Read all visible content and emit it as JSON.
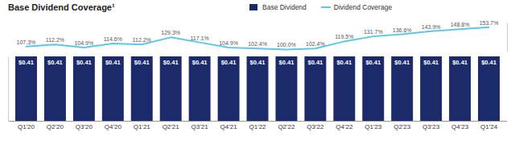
{
  "chart_data": {
    "type": "bar",
    "title": "Base Dividend Coverage¹",
    "categories": [
      "Q1'20",
      "Q2'20",
      "Q3'20",
      "Q4'20",
      "Q1'21",
      "Q2'21",
      "Q3'21",
      "Q4'21",
      "Q1'22",
      "Q2'22",
      "Q3'22",
      "Q4'22",
      "Q1'23",
      "Q2'23",
      "Q3'23",
      "Q4'23",
      "Q1'24"
    ],
    "series": [
      {
        "name": "Base Dividend",
        "type": "bar",
        "color": "#1B2A6B",
        "values": [
          0.41,
          0.41,
          0.41,
          0.41,
          0.41,
          0.41,
          0.41,
          0.41,
          0.41,
          0.41,
          0.41,
          0.41,
          0.41,
          0.41,
          0.41,
          0.41,
          0.41
        ],
        "value_labels": [
          "$0.41",
          "$0.41",
          "$0.41",
          "$0.41",
          "$0.41",
          "$0.41",
          "$0.41",
          "$0.41",
          "$0.41",
          "$0.41",
          "$0.41",
          "$0.41",
          "$0.41",
          "$0.41",
          "$0.41",
          "$0.41",
          "$0.41"
        ]
      },
      {
        "name": "Dividend Coverage",
        "type": "line",
        "color": "#5BC8E8",
        "axis": "y2",
        "values": [
          107.3,
          112.2,
          104.9,
          114.6,
          112.2,
          129.3,
          117.1,
          104.9,
          102.4,
          100.0,
          102.4,
          119.5,
          131.7,
          136.6,
          143.9,
          148.8,
          153.7
        ],
        "value_labels": [
          "107.3%",
          "112.2%",
          "104.9%",
          "114.6%",
          "112.2%",
          "129.3%",
          "117.1%",
          "104.9%",
          "102.4%",
          "100.0%",
          "102.4%",
          "119.5%",
          "131.7%",
          "136.6%",
          "143.9%",
          "148.8%",
          "153.7%"
        ]
      }
    ],
    "ylim": [
      0,
      0.41
    ],
    "y2lim": [
      95,
      165
    ],
    "data_labels": true,
    "tick_labels": "x",
    "grid": false,
    "legend": "top"
  }
}
